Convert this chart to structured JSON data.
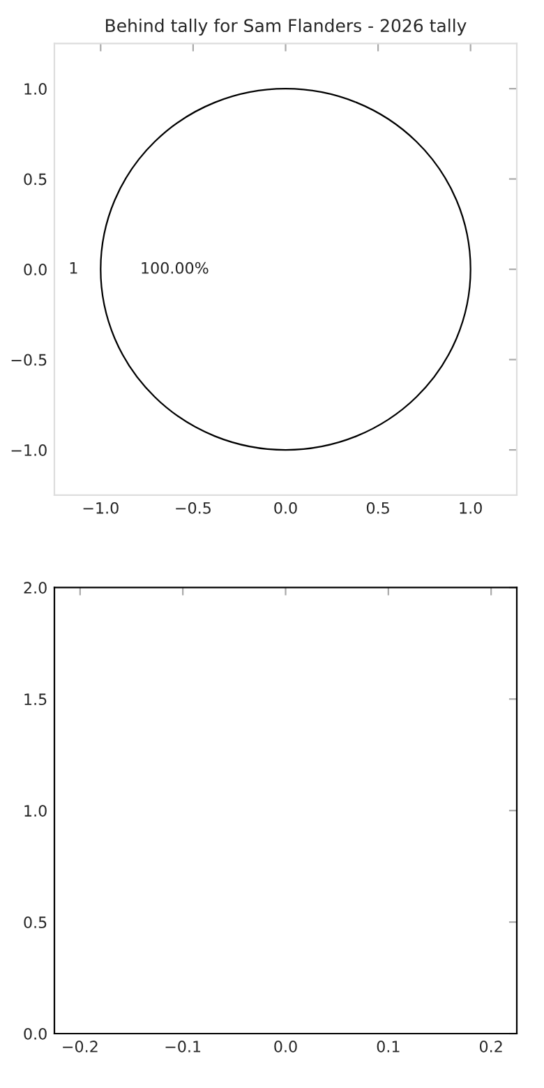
{
  "chart_data": [
    {
      "type": "pie",
      "title": "Behind tally for Sam Flanders - 2026 tally",
      "categories": [
        "1"
      ],
      "values": [
        100
      ],
      "colors": [
        "#ffffff"
      ],
      "value_labels": [
        "100.00%"
      ]
    },
    {
      "type": "scatter",
      "xlim": [
        -1.25,
        1.25
      ],
      "ylim": [
        -1.25,
        1.25
      ],
      "xticks": [
        {
          "value": -1.0,
          "label": "−1.0"
        },
        {
          "value": -0.5,
          "label": "−0.5"
        },
        {
          "value": 0.0,
          "label": "0.0"
        },
        {
          "value": 0.5,
          "label": "0.5"
        },
        {
          "value": 1.0,
          "label": "1.0"
        }
      ],
      "yticks": [
        {
          "value": -1.0,
          "label": "−1.0"
        },
        {
          "value": -0.5,
          "label": "−0.5"
        },
        {
          "value": 0.0,
          "label": "0.0"
        },
        {
          "value": 0.5,
          "label": "0.5"
        },
        {
          "value": 1.0,
          "label": "1.0"
        }
      ]
    },
    {
      "type": "scatter",
      "xlim": [
        -0.225,
        0.225
      ],
      "ylim": [
        0,
        2
      ],
      "xticks": [
        {
          "value": -0.2,
          "label": "−0.2"
        },
        {
          "value": -0.1,
          "label": "−0.1"
        },
        {
          "value": 0.0,
          "label": "0.0"
        },
        {
          "value": 0.1,
          "label": "0.1"
        },
        {
          "value": 0.2,
          "label": "0.2"
        }
      ],
      "yticks": [
        {
          "value": 0.0,
          "label": "0.0"
        },
        {
          "value": 0.5,
          "label": "0.5"
        },
        {
          "value": 1.0,
          "label": "1.0"
        },
        {
          "value": 1.5,
          "label": "1.5"
        },
        {
          "value": 2.0,
          "label": "2.0"
        }
      ]
    }
  ]
}
